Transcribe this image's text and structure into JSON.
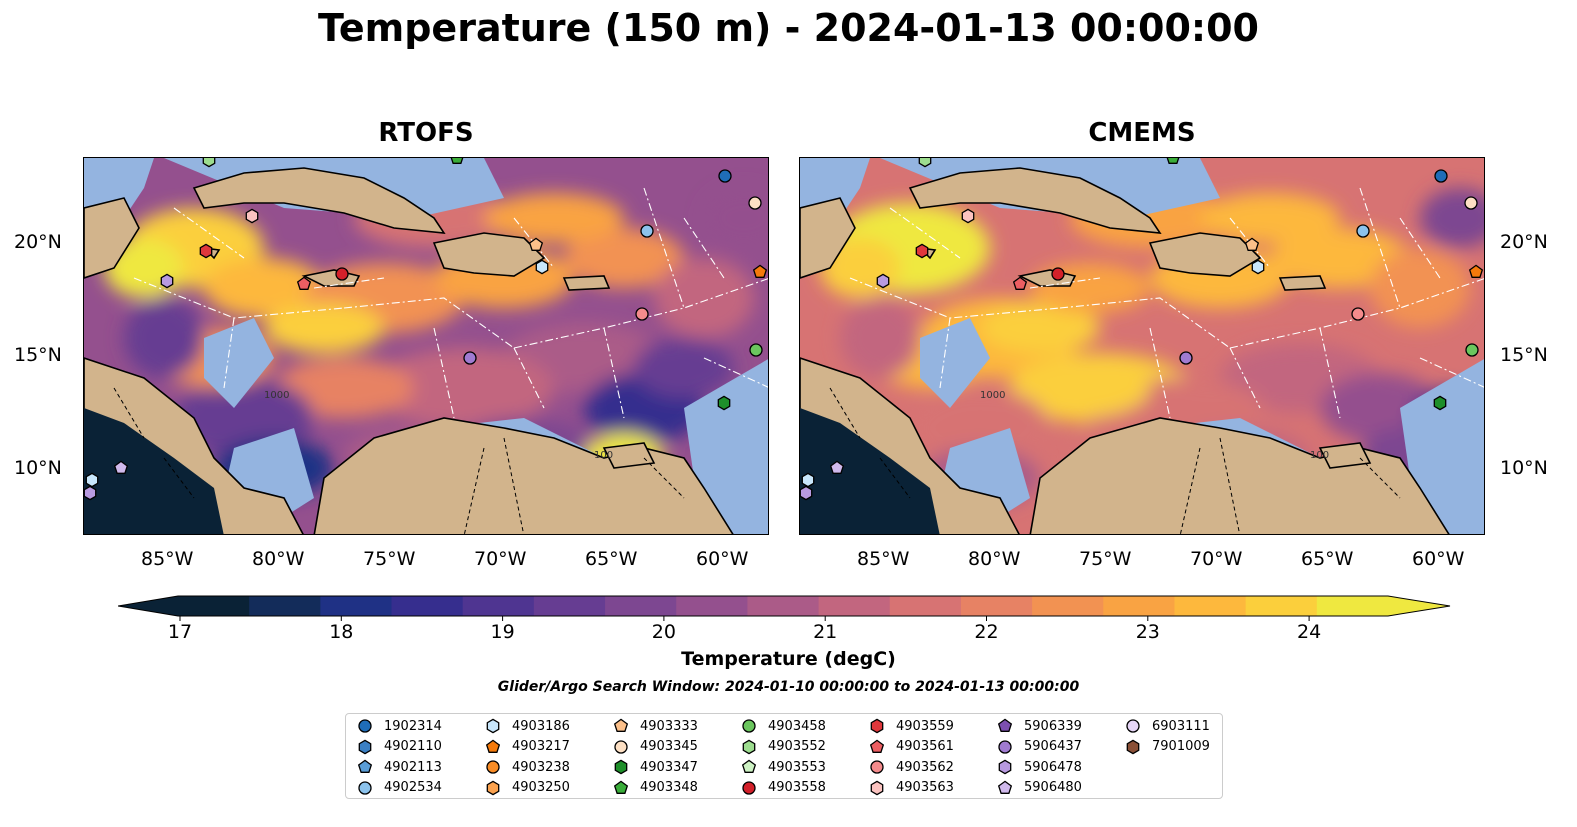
{
  "figure": {
    "title": "Temperature (150 m) - 2024-01-13 00:00:00",
    "panels": [
      {
        "title": "RTOFS"
      },
      {
        "title": "CMEMS"
      }
    ],
    "lat_ticks": [
      "20°N",
      "15°N",
      "10°N"
    ],
    "lon_ticks": [
      "85°W",
      "80°W",
      "75°W",
      "70°W",
      "65°W",
      "60°W"
    ],
    "colorbar": {
      "label": "Temperature (degC)",
      "ticks": [
        "17",
        "18",
        "19",
        "20",
        "21",
        "22",
        "23",
        "24"
      ],
      "colormap": "thermal",
      "colors": [
        "#0a2236",
        "#132c5a",
        "#1f3185",
        "#362e8e",
        "#4f3591",
        "#663d92",
        "#7d4791",
        "#94508e",
        "#ab5b88",
        "#c2667f",
        "#d77373",
        "#e78264",
        "#f29252",
        "#f9a343",
        "#fdb83d",
        "#fbcf3c",
        "#efe840"
      ],
      "extend": "both"
    },
    "search_window": "Glider/Argo Search Window: 2024-01-10 00:00:00 to 2024-01-13 00:00:00",
    "contour_labels": [
      "1000",
      "100"
    ],
    "land_color": "#d2b48c",
    "shelf_color": "#94b4e0"
  },
  "legend": {
    "items": [
      {
        "id": "1902314",
        "marker": "circle",
        "color": "#1f6db8"
      },
      {
        "id": "4902110",
        "marker": "hexagon",
        "color": "#3b80c4"
      },
      {
        "id": "4902113",
        "marker": "pentagon",
        "color": "#5a9dd6"
      },
      {
        "id": "4902534",
        "marker": "circle",
        "color": "#8cc3ed"
      },
      {
        "id": "4903186",
        "marker": "hexagon",
        "color": "#c8e6fb"
      },
      {
        "id": "4903217",
        "marker": "pentagon",
        "color": "#f57a0b"
      },
      {
        "id": "4903238",
        "marker": "circle",
        "color": "#f98c25"
      },
      {
        "id": "4903250",
        "marker": "hexagon",
        "color": "#fba24f"
      },
      {
        "id": "4903333",
        "marker": "pentagon",
        "color": "#fcc08a"
      },
      {
        "id": "4903345",
        "marker": "circle",
        "color": "#fde0c4"
      },
      {
        "id": "4903347",
        "marker": "hexagon",
        "color": "#1e8f2a"
      },
      {
        "id": "4903348",
        "marker": "pentagon",
        "color": "#3aad3a"
      },
      {
        "id": "4903458",
        "marker": "circle",
        "color": "#6bc65e"
      },
      {
        "id": "4903552",
        "marker": "hexagon",
        "color": "#9ddd8f"
      },
      {
        "id": "4903553",
        "marker": "pentagon",
        "color": "#cdf2c3"
      },
      {
        "id": "4903558",
        "marker": "circle",
        "color": "#d3202a"
      },
      {
        "id": "4903559",
        "marker": "hexagon",
        "color": "#e0383c"
      },
      {
        "id": "4903561",
        "marker": "pentagon",
        "color": "#ec5e62"
      },
      {
        "id": "4903562",
        "marker": "circle",
        "color": "#f48b8c"
      },
      {
        "id": "4903563",
        "marker": "hexagon",
        "color": "#fbc3c0"
      },
      {
        "id": "5906339",
        "marker": "pentagon",
        "color": "#7c4fb0"
      },
      {
        "id": "5906437",
        "marker": "circle",
        "color": "#a07bd1"
      },
      {
        "id": "5906478",
        "marker": "hexagon",
        "color": "#b89ae0"
      },
      {
        "id": "5906480",
        "marker": "pentagon",
        "color": "#d0b9ec"
      },
      {
        "id": "6903111",
        "marker": "circle",
        "color": "#e6d5f6"
      },
      {
        "id": "7901009",
        "marker": "hexagon",
        "color": "#8a5037"
      }
    ]
  }
}
